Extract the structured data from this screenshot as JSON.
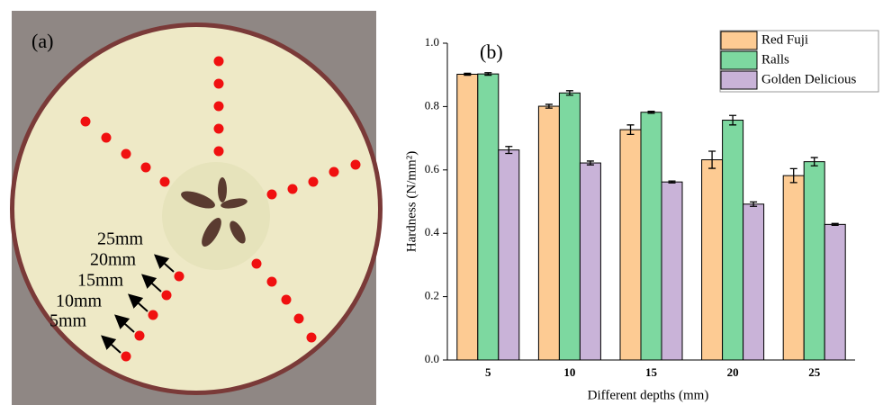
{
  "panel_a": {
    "label": "(a)",
    "depths": [
      "25mm",
      "20mm",
      "15mm",
      "10mm",
      "5mm"
    ]
  },
  "chart_data": {
    "type": "bar",
    "annotation": "(b)",
    "x_label": "Different depths (mm)",
    "y_label": "Hardness (N/mm²)",
    "categories": [
      "5",
      "10",
      "15",
      "20",
      "25"
    ],
    "series": [
      {
        "name": "Red Fuji",
        "color": "#fdcb93",
        "values": [
          0.902,
          0.801,
          0.727,
          0.632,
          0.582
        ],
        "errors": [
          0.003,
          0.006,
          0.015,
          0.027,
          0.022
        ]
      },
      {
        "name": "Ralls",
        "color": "#7dd8a0",
        "values": [
          0.903,
          0.843,
          0.782,
          0.757,
          0.626
        ],
        "errors": [
          0.004,
          0.007,
          0.003,
          0.015,
          0.013
        ]
      },
      {
        "name": "Golden Delicious",
        "color": "#c9b3d8",
        "values": [
          0.663,
          0.622,
          0.562,
          0.492,
          0.428
        ],
        "errors": [
          0.011,
          0.006,
          0.003,
          0.007,
          0.003
        ]
      }
    ],
    "ylim": [
      0,
      1.0
    ],
    "yticks": [
      {
        "value": 0,
        "label": "0.0"
      },
      0.2,
      0.4,
      0.6,
      0.8,
      {
        "value": 1.0,
        "label": "1.0"
      }
    ],
    "legend": "upper right"
  }
}
